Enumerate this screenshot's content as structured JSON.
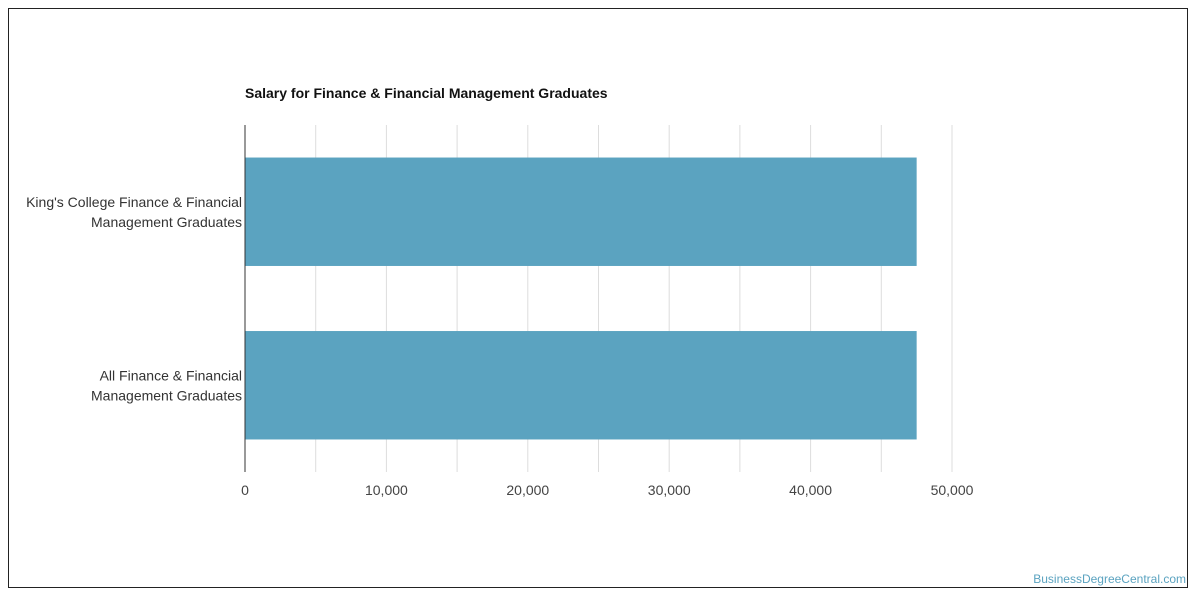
{
  "chart_data": {
    "type": "bar",
    "orientation": "horizontal",
    "title": "Salary for Finance & Financial Management Graduates",
    "categories": [
      [
        "King's College Finance & Financial",
        "Management Graduates"
      ],
      [
        "All Finance & Financial",
        "Management Graduates"
      ]
    ],
    "values": [
      47500,
      47500
    ],
    "xlim": [
      0,
      50000
    ],
    "xticks": [
      0,
      10000,
      20000,
      30000,
      40000,
      50000
    ],
    "xtick_labels": [
      "0",
      "10,000",
      "20,000",
      "30,000",
      "40,000",
      "50,000"
    ],
    "grid": true,
    "bar_color": "#5ba3c0"
  },
  "watermark": "BusinessDegreeCentral.com"
}
